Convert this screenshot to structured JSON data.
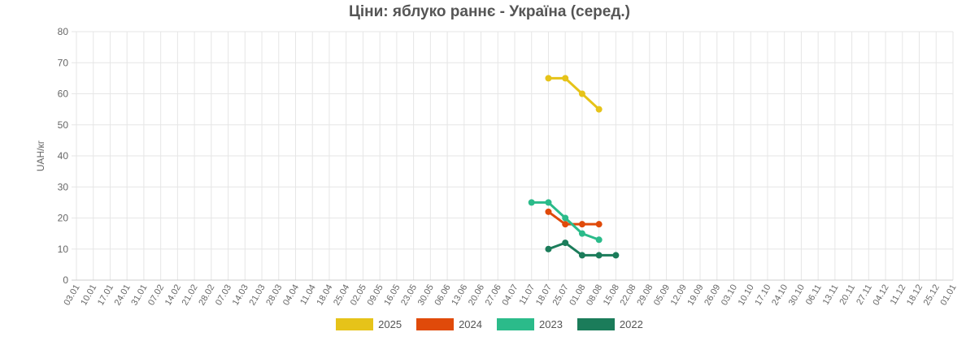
{
  "chart_data": {
    "type": "line",
    "title": "Ціни: яблуко раннє - Україна (серед.)",
    "ylabel": "UAH/кг",
    "xlabel": "",
    "ylim": [
      0,
      80
    ],
    "yticks": [
      0,
      10,
      20,
      30,
      40,
      50,
      60,
      70,
      80
    ],
    "grid": true,
    "legend_position": "bottom",
    "categories": [
      "03.01",
      "10.01",
      "17.01",
      "24.01",
      "31.01",
      "07.02",
      "14.02",
      "21.02",
      "28.02",
      "07.03",
      "14.03",
      "21.03",
      "28.03",
      "04.04",
      "11.04",
      "18.04",
      "25.04",
      "02.05",
      "09.05",
      "16.05",
      "23.05",
      "30.05",
      "06.06",
      "13.06",
      "20.06",
      "27.06",
      "04.07",
      "11.07",
      "18.07",
      "25.07",
      "01.08",
      "08.08",
      "15.08",
      "22.08",
      "29.08",
      "05.09",
      "12.09",
      "19.09",
      "26.09",
      "03.10",
      "10.10",
      "17.10",
      "24.10",
      "30.10",
      "06.11",
      "13.11",
      "20.11",
      "27.11",
      "04.12",
      "11.12",
      "18.12",
      "25.12",
      "01.01"
    ],
    "series": [
      {
        "name": "2025",
        "color": "#e6c319",
        "points": [
          [
            "18.07",
            65
          ],
          [
            "25.07",
            65
          ],
          [
            "01.08",
            60
          ],
          [
            "08.08",
            55
          ]
        ]
      },
      {
        "name": "2024",
        "color": "#e04a0a",
        "points": [
          [
            "18.07",
            22
          ],
          [
            "25.07",
            18
          ],
          [
            "01.08",
            18
          ],
          [
            "08.08",
            18
          ]
        ]
      },
      {
        "name": "2023",
        "color": "#2bbb8a",
        "points": [
          [
            "11.07",
            25
          ],
          [
            "18.07",
            25
          ],
          [
            "25.07",
            20
          ],
          [
            "01.08",
            15
          ],
          [
            "08.08",
            13
          ]
        ]
      },
      {
        "name": "2022",
        "color": "#1b7c5a",
        "points": [
          [
            "18.07",
            10
          ],
          [
            "25.07",
            12
          ],
          [
            "01.08",
            8
          ],
          [
            "08.08",
            8
          ],
          [
            "15.08",
            8
          ]
        ]
      }
    ]
  }
}
